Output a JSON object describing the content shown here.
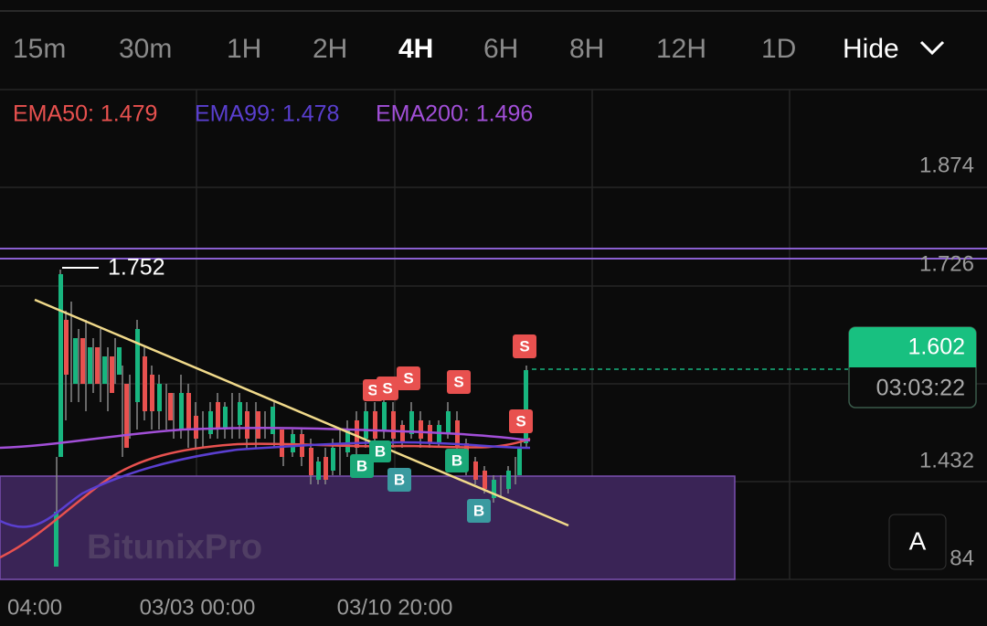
{
  "timeframes": [
    "15m",
    "30m",
    "1H",
    "2H",
    "4H",
    "6H",
    "8H",
    "12H",
    "1D"
  ],
  "hide_button": "Hide",
  "indicators": [
    {
      "label": "EMA50: 1.479",
      "color": "#e8514f"
    },
    {
      "label": "EMA99: 1.478",
      "color": "#5a3fd0"
    },
    {
      "label": "EMA200: 1.496",
      "color": "#a24fd8"
    }
  ],
  "price_axis": [
    "1.874",
    "1.726",
    "1.432",
    "84"
  ],
  "time_axis": [
    "04:00",
    "03/03 00:00",
    "03/10 20:00"
  ],
  "high_label": "1.752",
  "last_price": "1.602",
  "countdown": "03:03:22",
  "sell_label": "S",
  "buy_label": "B",
  "watermark": "BitunixPro",
  "side_button": "A"
}
